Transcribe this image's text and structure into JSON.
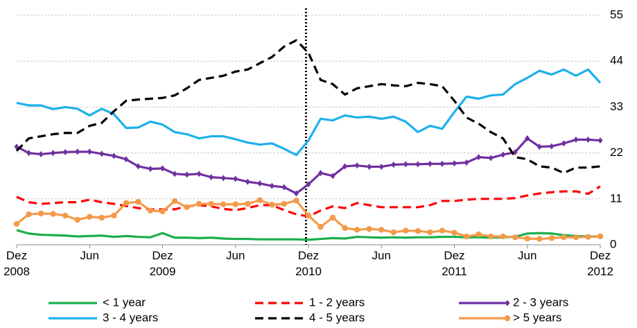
{
  "chart_data": {
    "type": "line",
    "categories": [
      "Dez 2008",
      null,
      null,
      null,
      null,
      null,
      "Jun",
      null,
      null,
      null,
      null,
      null,
      "Dez 2009",
      null,
      null,
      null,
      null,
      null,
      "Jun",
      null,
      null,
      null,
      null,
      null,
      "Dez 2010",
      null,
      null,
      null,
      null,
      null,
      "Jun",
      null,
      null,
      null,
      null,
      null,
      "Dez 2011",
      null,
      null,
      null,
      null,
      null,
      "Jun",
      null,
      null,
      null,
      null,
      null,
      "Dez 2012"
    ],
    "ylim": [
      0,
      55
    ],
    "yticks": [
      0,
      11,
      22,
      33,
      44,
      55
    ],
    "grid": true,
    "y_axis_side": "right",
    "vline_x": 23.8,
    "series": [
      {
        "name": "< 1 year",
        "color": "#1aae4c",
        "style": "solid",
        "values": [
          3.5,
          2.7,
          2.4,
          2.3,
          2.2,
          2.0,
          2.1,
          2.2,
          1.9,
          2.1,
          1.9,
          1.8,
          2.8,
          1.7,
          1.7,
          1.6,
          1.7,
          1.5,
          1.4,
          1.4,
          1.3,
          1.3,
          1.3,
          1.3,
          1.2,
          1.4,
          1.6,
          1.5,
          1.9,
          1.8,
          1.7,
          1.8,
          1.7,
          1.8,
          1.8,
          1.9,
          1.9,
          1.8,
          1.8,
          1.7,
          1.8,
          1.9,
          2.7,
          2.8,
          2.7,
          2.3,
          2.1,
          2.0,
          2.0
        ]
      },
      {
        "name": "1 - 2 years",
        "color": "#ff0000",
        "style": "dashed",
        "values": [
          11.5,
          10.2,
          9.8,
          10,
          10.2,
          10.2,
          10.8,
          10.2,
          9.8,
          9.3,
          8.8,
          8.5,
          8.5,
          8.5,
          9.2,
          9.5,
          9.2,
          8.6,
          8.3,
          8.8,
          9.5,
          9.5,
          8.3,
          7.3,
          6.8,
          8.2,
          9.2,
          8.8,
          10,
          9.5,
          9,
          9,
          9,
          9,
          9.5,
          10.5,
          10.5,
          10.8,
          11,
          11,
          11,
          11.2,
          11.8,
          12.3,
          12.6,
          12.8,
          12.8,
          12.2,
          14
        ]
      },
      {
        "name": "2 - 3 years",
        "color": "#7030a0",
        "style": "solid",
        "marker": "diamond",
        "values": [
          23.5,
          22,
          21.7,
          22,
          22.2,
          22.3,
          22.3,
          21.8,
          21.3,
          20.5,
          18.8,
          18.2,
          18.3,
          17,
          16.8,
          17,
          16.2,
          16,
          15.8,
          15.1,
          14.7,
          14.1,
          13.8,
          12.3,
          14.5,
          17.2,
          16.5,
          18.8,
          19,
          18.7,
          18.7,
          19.2,
          19.3,
          19.3,
          19.4,
          19.4,
          19.5,
          19.7,
          21,
          20.8,
          21.6,
          22.2,
          25.5,
          23.5,
          23.6,
          24.3,
          25.2,
          25.2,
          25
        ]
      },
      {
        "name": "3 - 4 years",
        "color": "#1cb0ec",
        "style": "solid",
        "values": [
          34,
          33.4,
          33.4,
          32.5,
          33,
          32.6,
          31,
          32.6,
          31.3,
          28,
          28.1,
          29.5,
          28.8,
          27,
          26.5,
          25.5,
          26,
          26,
          25.3,
          24.5,
          24,
          24.3,
          23,
          21.5,
          25,
          30.2,
          29.8,
          31,
          30.5,
          30.7,
          30.2,
          30.7,
          29.5,
          27,
          28.5,
          27.8,
          31.8,
          35.5,
          35,
          35.8,
          36,
          38.5,
          40,
          41.7,
          40.8,
          42,
          40.5,
          42,
          38.8
        ]
      },
      {
        "name": "4 - 5 years",
        "color": "#000000",
        "style": "dashed",
        "values": [
          22.5,
          25.5,
          26,
          26.5,
          26.8,
          26.8,
          28.5,
          29.2,
          32,
          34.5,
          34.8,
          35,
          35.2,
          35.8,
          37.5,
          39.5,
          40,
          40.5,
          41.5,
          42,
          43.5,
          45,
          47.5,
          49,
          46,
          39.5,
          38.5,
          36,
          37.5,
          38,
          38.5,
          38.2,
          38,
          38.8,
          38.5,
          38,
          34.5,
          30.5,
          29,
          27,
          25.5,
          21,
          20.5,
          18.8,
          18.5,
          17.2,
          18.5,
          18.5,
          18.8
        ]
      },
      {
        "name": "> 5 years",
        "color": "#f39a4a",
        "style": "solid",
        "marker": "circle",
        "values": [
          5,
          7.3,
          7.5,
          7.4,
          7,
          6,
          6.7,
          6.5,
          7,
          10,
          10.3,
          8.2,
          8,
          10.5,
          9,
          9.8,
          9.8,
          9.7,
          9.7,
          9.8,
          10.7,
          9.6,
          9.8,
          10.6,
          7,
          4.3,
          6.5,
          4,
          3.6,
          3.8,
          3.6,
          3,
          3.4,
          3.3,
          3,
          3.4,
          2.9,
          2,
          2.5,
          2,
          2,
          1.8,
          1.5,
          1.4,
          1.6,
          1.8,
          1.8,
          1.9,
          2
        ]
      }
    ]
  }
}
